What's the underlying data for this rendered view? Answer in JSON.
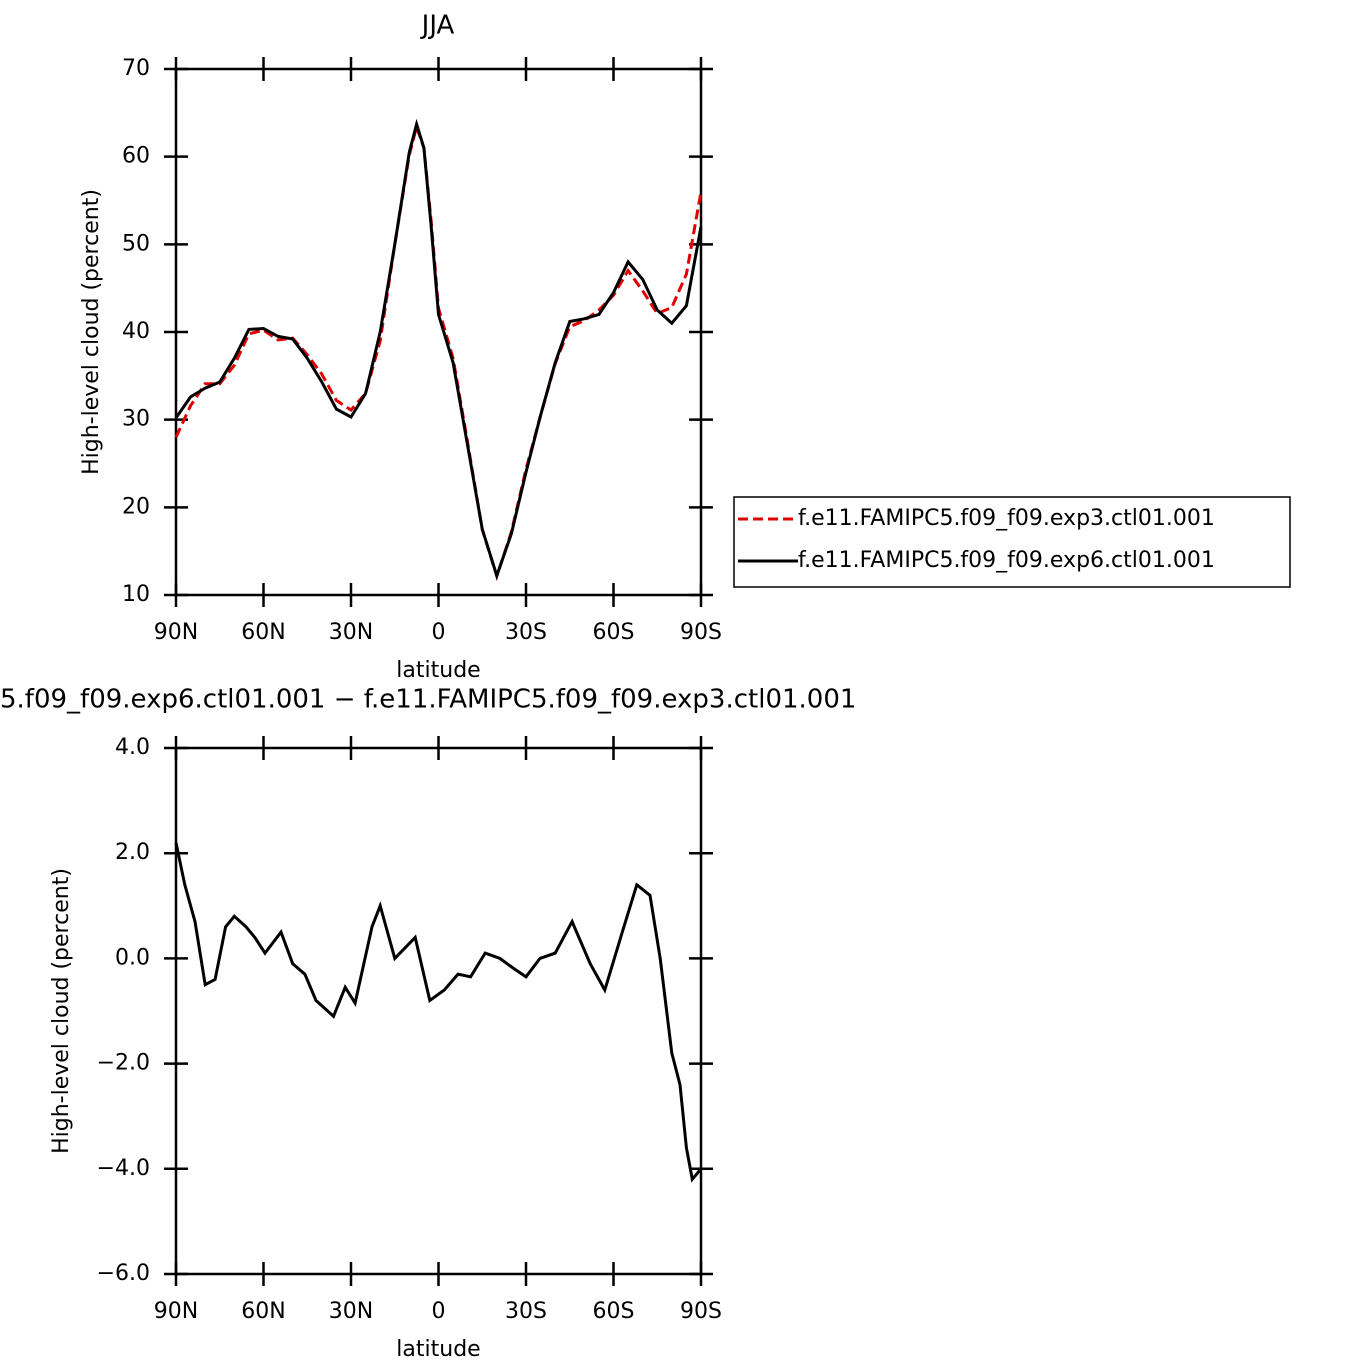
{
  "chart_data": [
    {
      "type": "line",
      "title": "JJA",
      "xlabel": "latitude",
      "ylabel": "High-level cloud (percent)",
      "x": [
        90,
        85,
        80,
        75,
        70,
        65,
        60,
        55,
        50,
        45,
        40,
        35,
        30,
        25,
        20,
        15,
        10,
        7.5,
        5,
        2.5,
        0,
        -5,
        -10,
        -15,
        -20,
        -25,
        -30,
        -35,
        -40,
        -45,
        -50,
        -55,
        -60,
        -65,
        -70,
        -75,
        -80,
        -85,
        -90
      ],
      "series": [
        {
          "name": "f.e11.FAMIPC5.f09_f09.exp3.ctl01.001",
          "color": "#e00000",
          "dash": true,
          "values": [
            28.0,
            31.6,
            34.1,
            34.1,
            36.2,
            39.8,
            40.2,
            39.1,
            39.3,
            37.4,
            35.2,
            32.2,
            31.1,
            33.0,
            39.0,
            50.0,
            60.2,
            63.4,
            61.0,
            52.6,
            42.7,
            37.0,
            27.35,
            17.45,
            12.15,
            17.2,
            24.35,
            30.5,
            36.4,
            40.6,
            41.3,
            42.5,
            44.2,
            47.0,
            44.7,
            42.1,
            42.8,
            46.6,
            56.0
          ]
        },
        {
          "name": "f.e11.FAMIPC5.f09_f09.exp6.ctl01.001",
          "color": "#000000",
          "dash": false,
          "values": [
            30.2,
            32.6,
            33.6,
            34.3,
            37.0,
            40.3,
            40.4,
            39.5,
            39.2,
            37.0,
            34.3,
            31.2,
            30.3,
            33.0,
            40.0,
            50.0,
            60.5,
            63.7,
            61.0,
            52.0,
            42.0,
            36.5,
            27.0,
            17.5,
            12.2,
            17.0,
            24.0,
            30.5,
            36.5,
            41.2,
            41.5,
            42.0,
            44.5,
            48.0,
            46.0,
            42.5,
            41.0,
            43.0,
            52.0
          ]
        }
      ],
      "xlim": [
        90,
        -90
      ],
      "ylim": [
        10,
        70
      ],
      "xticks": [
        {
          "value": 90,
          "label": "90N"
        },
        {
          "value": 60,
          "label": "60N"
        },
        {
          "value": 30,
          "label": "30N"
        },
        0,
        {
          "value": -30,
          "label": "30S"
        },
        {
          "value": -60,
          "label": "60S"
        },
        {
          "value": -90,
          "label": "90S"
        }
      ],
      "yticks": [
        10,
        20,
        30,
        40,
        50,
        60,
        70
      ],
      "legend": "right"
    },
    {
      "type": "line",
      "title": "5.f09_f09.exp6.ctl01.001  −  f.e11.FAMIPC5.f09_f09.exp3.ctl01.001",
      "xlabel": "latitude",
      "ylabel": "High-level cloud (percent)",
      "x": [
        90,
        87,
        83.5,
        80,
        76.6,
        73,
        70,
        66,
        63,
        59.5,
        54,
        50,
        45.8,
        42,
        36,
        32,
        28.6,
        22.8,
        20,
        15,
        11.5,
        8,
        3,
        -2,
        -6.7,
        -11,
        -16,
        -21,
        -26,
        -30,
        -34.8,
        -40,
        -45.8,
        -52,
        -57,
        -63,
        -68,
        -72.5,
        -76,
        -80,
        -82.8,
        -85,
        -87,
        -90
      ],
      "series": [
        {
          "color": "#000000",
          "dash": false,
          "values": [
            2.2,
            1.4,
            0.7,
            -0.5,
            -0.4,
            0.6,
            0.8,
            0.6,
            0.4,
            0.1,
            0.5,
            -0.1,
            -0.3,
            -0.8,
            -1.1,
            -0.55,
            -0.85,
            0.6,
            1.0,
            0.0,
            0.2,
            0.4,
            -0.8,
            -0.6,
            -0.3,
            -0.35,
            0.1,
            0.0,
            -0.2,
            -0.35,
            0.0,
            0.1,
            0.7,
            -0.1,
            -0.6,
            0.5,
            1.4,
            1.2,
            0.0,
            -1.8,
            -2.4,
            -3.6,
            -4.2,
            -4.0
          ]
        }
      ],
      "xlim": [
        90,
        -90
      ],
      "ylim": [
        -6,
        4
      ],
      "xticks": [
        {
          "value": 90,
          "label": "90N"
        },
        {
          "value": 60,
          "label": "60N"
        },
        {
          "value": 30,
          "label": "30N"
        },
        0,
        {
          "value": -30,
          "label": "30S"
        },
        {
          "value": -60,
          "label": "60S"
        },
        {
          "value": -90,
          "label": "90S"
        }
      ],
      "yticks": [
        {
          "value": -6,
          "label": "−6.0"
        },
        {
          "value": -4,
          "label": "−4.0"
        },
        {
          "value": -2,
          "label": "−2.0"
        },
        {
          "value": 0,
          "label": "0.0"
        },
        {
          "value": 2,
          "label": "2.0"
        },
        {
          "value": 4,
          "label": "4.0"
        }
      ]
    }
  ]
}
